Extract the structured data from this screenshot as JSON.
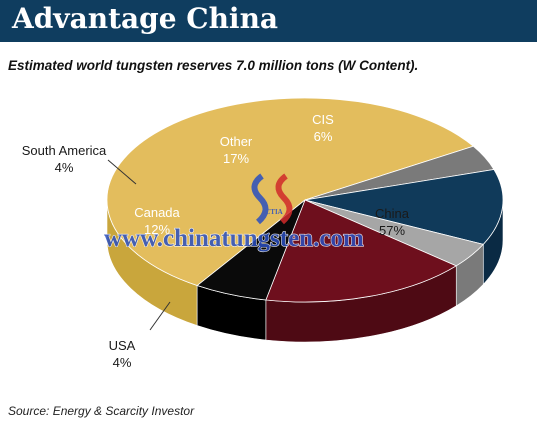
{
  "header": {
    "title": "Advantage China"
  },
  "chart_data": {
    "type": "pie",
    "title": "Estimated world tungsten reserves 7.0 million tons (W Content).",
    "source": "Source: Energy & Scarcity Investor",
    "slices": [
      {
        "label": "China",
        "value": 57,
        "display": "57%",
        "color": "#e3bd5d",
        "side_color": "#c9a63c"
      },
      {
        "label": "USA",
        "value": 4,
        "display": "4%",
        "color": "#7a7a7a",
        "side_color": "#3a3a3a"
      },
      {
        "label": "Canada",
        "value": 12,
        "display": "12%",
        "color": "#103a5a",
        "side_color": "#0a2a44"
      },
      {
        "label": "South America",
        "value": 4,
        "display": "4%",
        "color": "#a6a6a6",
        "side_color": "#7a7a7a"
      },
      {
        "label": "Other",
        "value": 17,
        "display": "17%",
        "color": "#6e0f1d",
        "side_color": "#4e0a14"
      },
      {
        "label": "CIS",
        "value": 6,
        "display": "6%",
        "color": "#0a0a0a",
        "side_color": "#000000"
      }
    ]
  },
  "watermark": {
    "text": "www.chinatungsten.com",
    "logo_text": "CTIA"
  }
}
